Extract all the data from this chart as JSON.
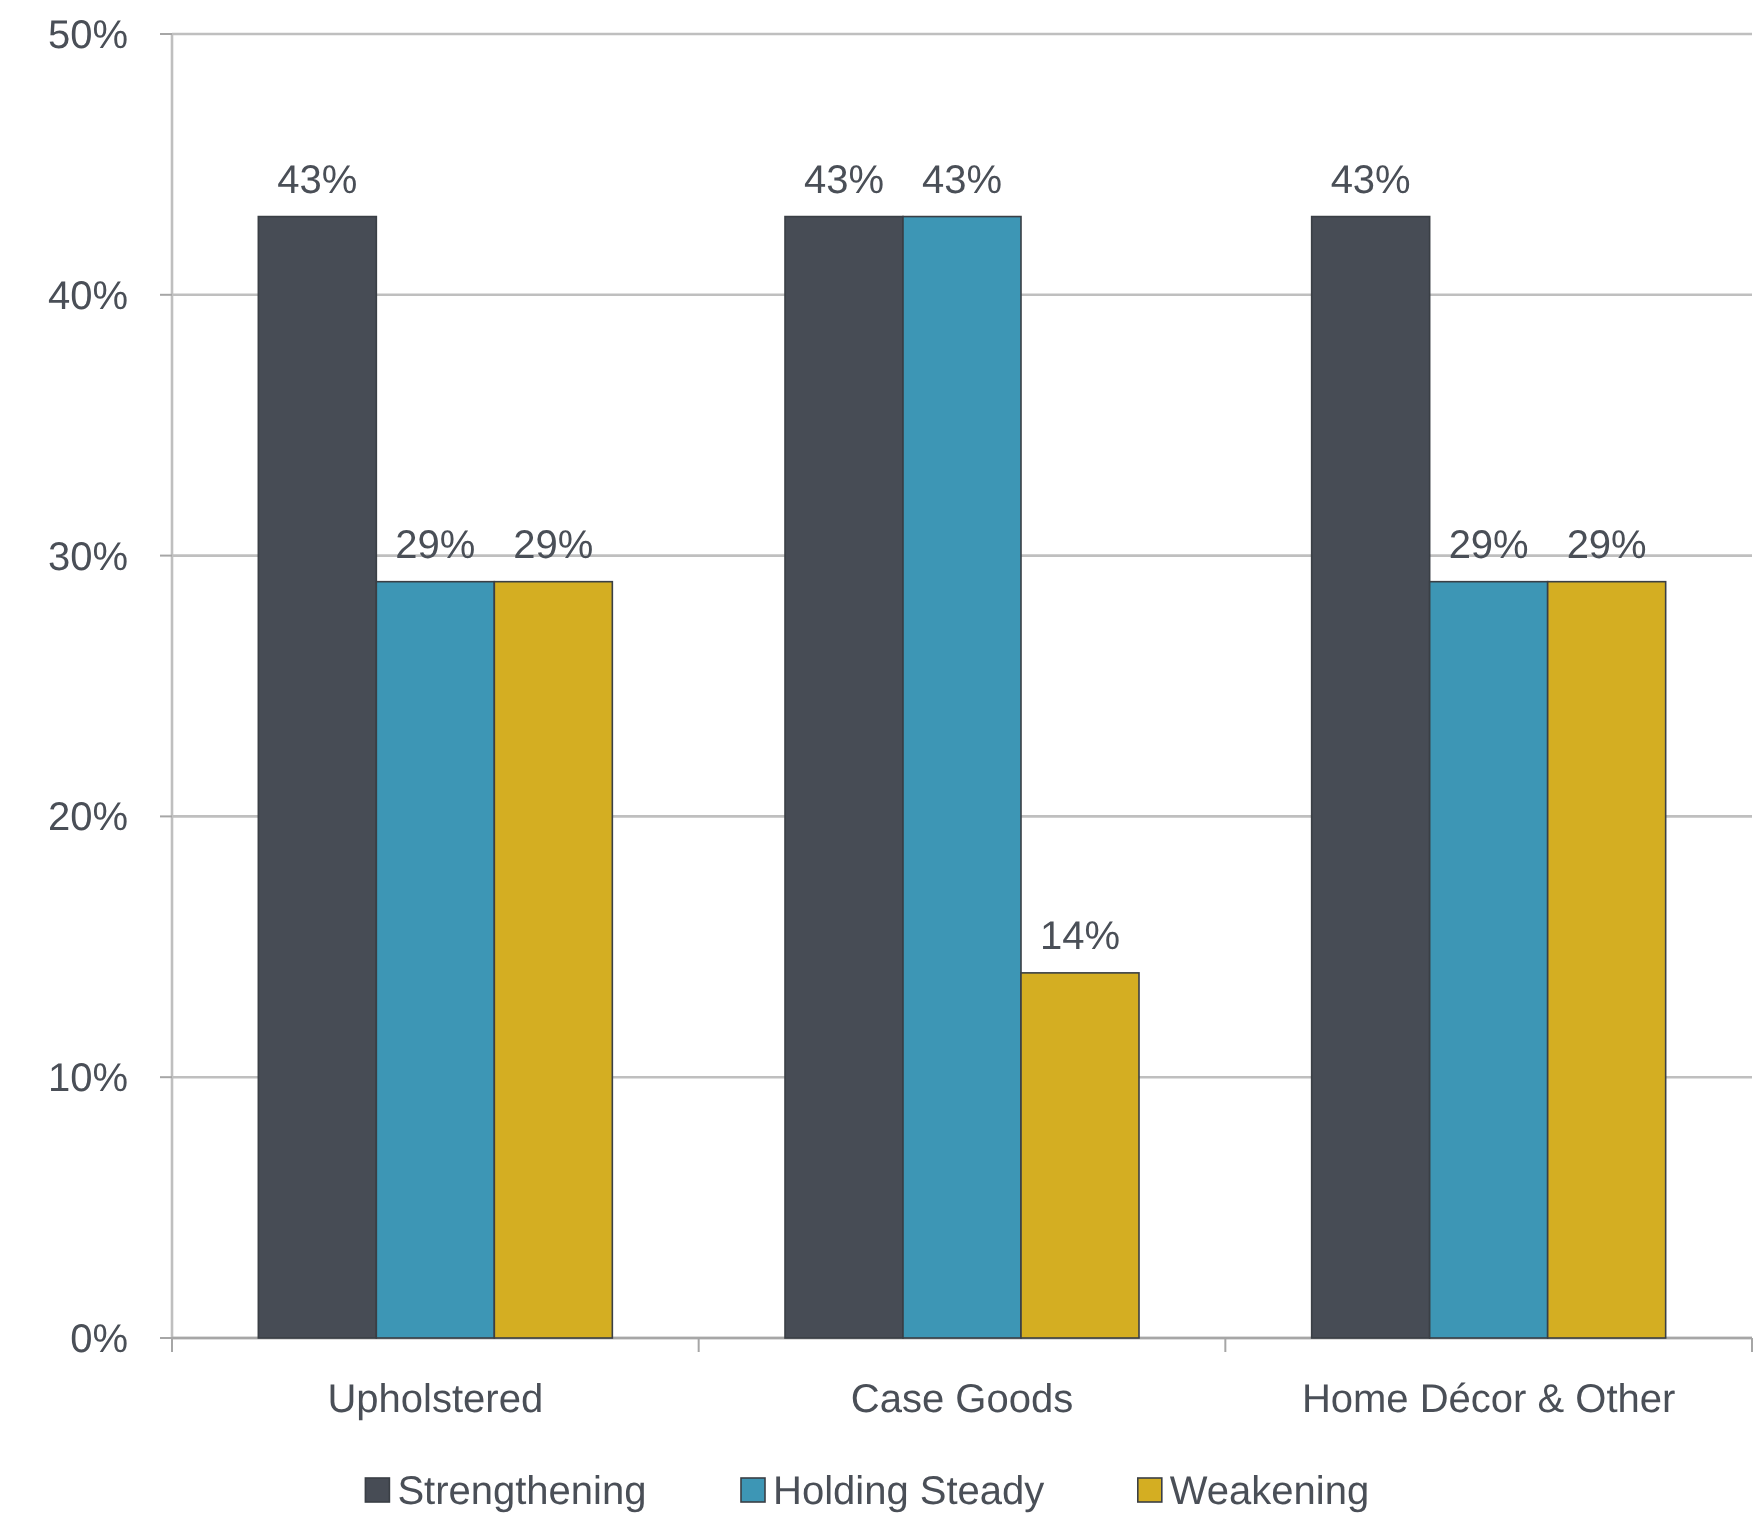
{
  "chart_data": {
    "type": "bar",
    "categories": [
      "Upholstered",
      "Case Goods",
      "Home Décor & Other"
    ],
    "series": [
      {
        "name": "Strengthening",
        "color": "#474c55",
        "values": [
          43,
          43,
          43
        ]
      },
      {
        "name": "Holding Steady",
        "color": "#3d96b5",
        "values": [
          29,
          43,
          29
        ]
      },
      {
        "name": "Weakening",
        "color": "#d4ae22",
        "values": [
          29,
          14,
          29
        ]
      }
    ],
    "ylim": [
      0,
      50
    ],
    "yticks": [
      {
        "value": 0,
        "label": "0%"
      },
      {
        "value": 10,
        "label": "10%"
      },
      {
        "value": 20,
        "label": "20%"
      },
      {
        "value": 30,
        "label": "30%"
      },
      {
        "value": 40,
        "label": "40%"
      },
      {
        "value": 50,
        "label": "50%"
      }
    ],
    "value_labels": [
      [
        "43%",
        "43%",
        "43%"
      ],
      [
        "29%",
        "43%",
        "29%"
      ],
      [
        "29%",
        "14%",
        "29%"
      ]
    ],
    "grid": "y",
    "legend": "bottom"
  }
}
